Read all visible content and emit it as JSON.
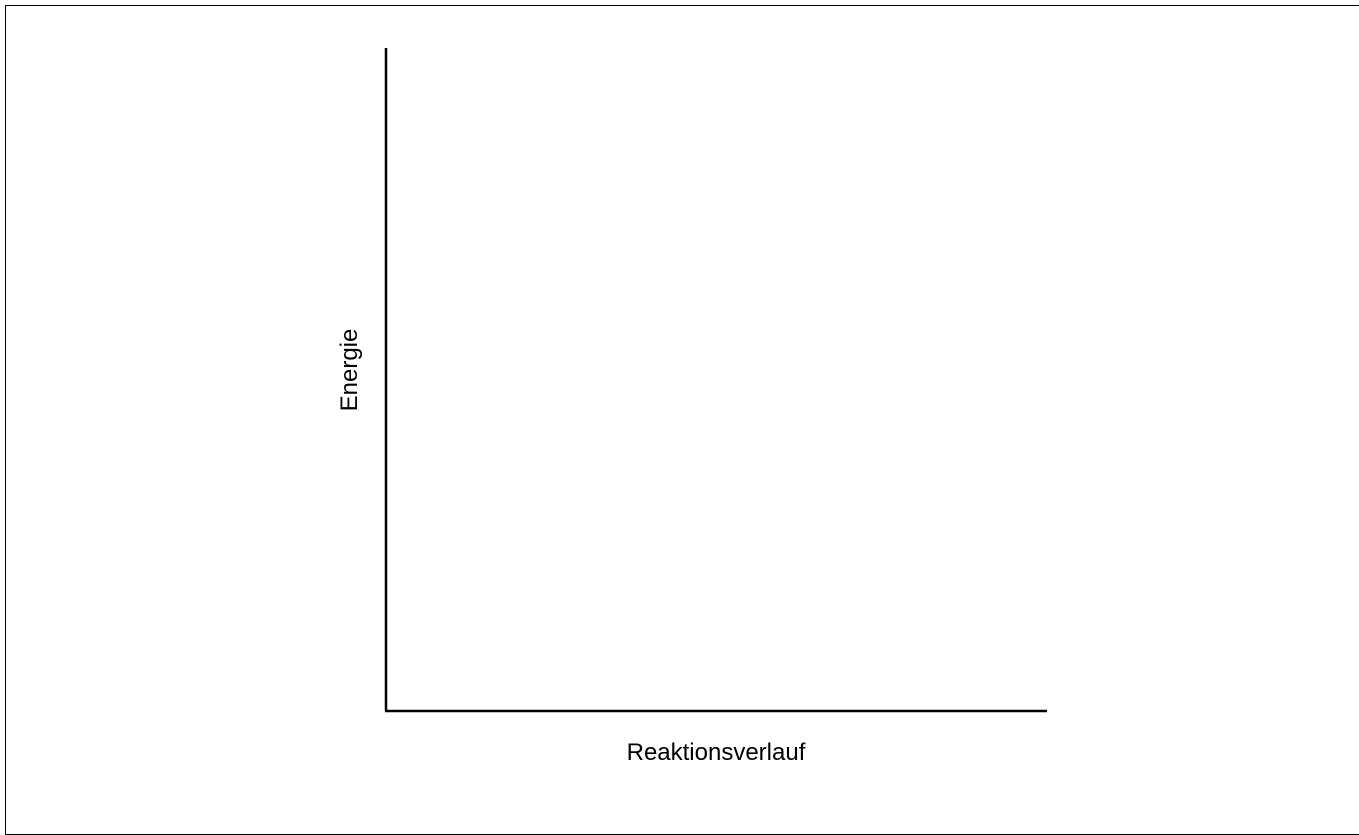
{
  "chart_data": {
    "type": "line",
    "title": "",
    "xlabel": "Reaktionsverlauf",
    "ylabel": "Energie",
    "series": [],
    "grid": false,
    "legend": "none"
  }
}
